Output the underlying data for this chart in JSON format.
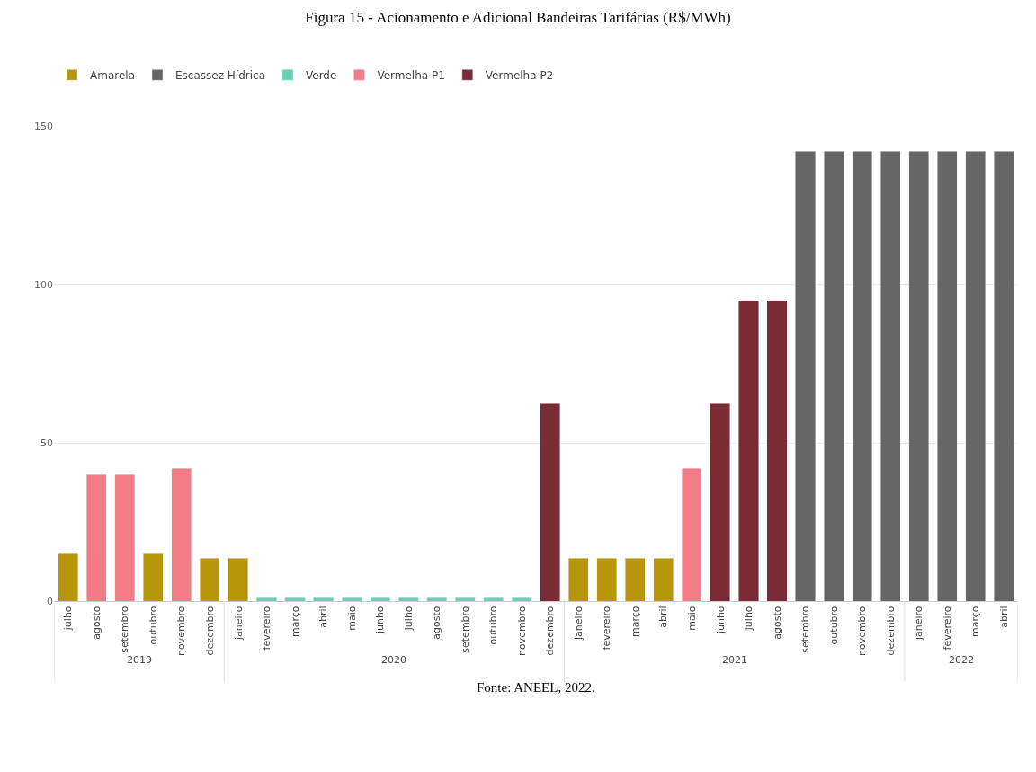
{
  "chart_data": {
    "type": "bar",
    "title": "Figura 15 - Acionamento e Adicional Bandeiras Tarifárias (R$/MWh)",
    "categories": [
      "julho",
      "agosto",
      "setembro",
      "outubro",
      "novembro",
      "dezembro",
      "janeiro",
      "fevereiro",
      "março",
      "abril",
      "maio",
      "junho",
      "julho",
      "agosto",
      "setembro",
      "outubro",
      "novembro",
      "dezembro",
      "janeiro",
      "fevereiro",
      "março",
      "abril",
      "maio",
      "junho",
      "julho",
      "agosto",
      "setembro",
      "outubro",
      "novembro",
      "dezembro",
      "janeiro",
      "fevereiro",
      "março",
      "abril"
    ],
    "stacked": true,
    "series": [
      {
        "name": "Amarela",
        "color": "#b8960c",
        "values": [
          15,
          null,
          null,
          15,
          null,
          13.5,
          13.5,
          null,
          null,
          null,
          null,
          null,
          null,
          null,
          null,
          null,
          null,
          null,
          13.5,
          13.5,
          13.5,
          13.5,
          null,
          null,
          null,
          null,
          null,
          null,
          null,
          null,
          null,
          null,
          null,
          null
        ]
      },
      {
        "name": "Escassez Hídrica",
        "color": "#666666",
        "values": [
          null,
          null,
          null,
          null,
          null,
          null,
          null,
          null,
          null,
          null,
          null,
          null,
          null,
          null,
          null,
          null,
          null,
          null,
          null,
          null,
          null,
          null,
          null,
          null,
          null,
          null,
          142,
          142,
          142,
          142,
          142,
          142,
          142,
          142
        ]
      },
      {
        "name": "Verde",
        "color": "#5fd3b5",
        "values": [
          null,
          null,
          null,
          null,
          null,
          null,
          null,
          1,
          1,
          1,
          1,
          1,
          1,
          1,
          1,
          1,
          1,
          null,
          null,
          null,
          null,
          null,
          null,
          null,
          null,
          null,
          null,
          null,
          null,
          null,
          null,
          null,
          null,
          null
        ]
      },
      {
        "name": "Vermelha P1",
        "color": "#f47c86",
        "values": [
          null,
          40,
          40,
          null,
          42,
          null,
          null,
          null,
          null,
          null,
          null,
          null,
          null,
          null,
          null,
          null,
          null,
          null,
          null,
          null,
          null,
          null,
          42,
          null,
          null,
          null,
          null,
          null,
          null,
          null,
          null,
          null,
          null,
          null
        ]
      },
      {
        "name": "Vermelha P2",
        "color": "#7b2b35",
        "values": [
          null,
          null,
          null,
          null,
          null,
          null,
          null,
          null,
          null,
          null,
          null,
          null,
          null,
          null,
          null,
          null,
          null,
          62.5,
          null,
          null,
          null,
          null,
          null,
          62.5,
          95,
          95,
          null,
          null,
          null,
          null,
          null,
          null,
          null,
          null
        ]
      }
    ],
    "ylim": [
      0,
      150
    ],
    "yticks": [
      0,
      50,
      100,
      150
    ],
    "grid": "y",
    "legend": "top left",
    "annotations": [
      "2019",
      "2020",
      "2021",
      "2022",
      "Fonte: ANEEL, 2022."
    ]
  }
}
